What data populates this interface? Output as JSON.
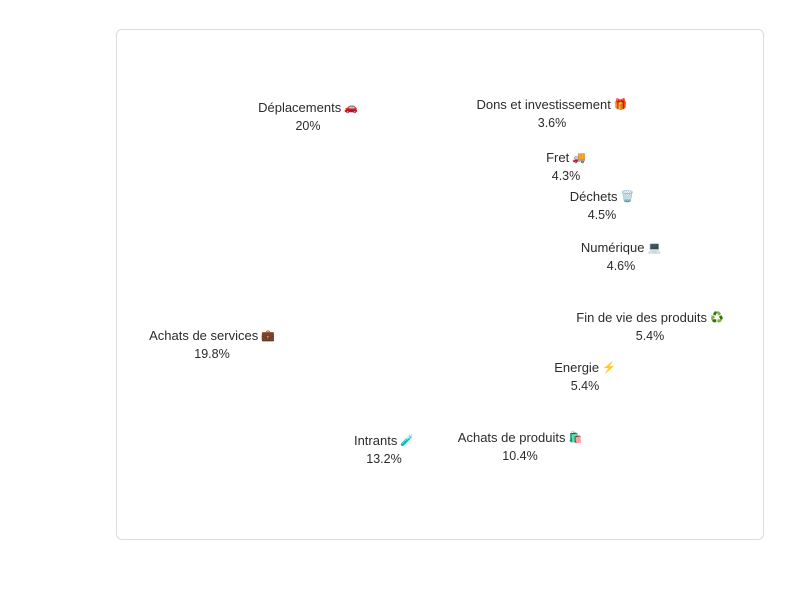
{
  "chart_data": {
    "type": "pie",
    "slices": [
      {
        "name": "Déplacements",
        "emoji": "🚗",
        "value": 20,
        "value_label": "20%"
      },
      {
        "name": "Dons et investissement",
        "emoji": "🎁",
        "value": 3.6,
        "value_label": "3.6%"
      },
      {
        "name": "Fret",
        "emoji": "🚚",
        "value": 4.3,
        "value_label": "4.3%"
      },
      {
        "name": "Déchets",
        "emoji": "🗑️",
        "value": 4.5,
        "value_label": "4.5%"
      },
      {
        "name": "Numérique",
        "emoji": "💻",
        "value": 4.6,
        "value_label": "4.6%"
      },
      {
        "name": "Fin de vie des produits",
        "emoji": "♻️",
        "value": 5.4,
        "value_label": "5.4%"
      },
      {
        "name": "Energie",
        "emoji": "⚡",
        "value": 5.4,
        "value_label": "5.4%"
      },
      {
        "name": "Achats de produits",
        "emoji": "🛍️",
        "value": 10.4,
        "value_label": "10.4%"
      },
      {
        "name": "Intrants",
        "emoji": "🧪",
        "value": 13.2,
        "value_label": "13.2%"
      },
      {
        "name": "Achats de services",
        "emoji": "💼",
        "value": 19.8,
        "value_label": "19.8%"
      }
    ],
    "colors": [
      "#f7f7f7",
      "#f4f4f4",
      "#f6f6f6",
      "#f3f3f3",
      "#f8f8f8",
      "#f5f5f5",
      "#f7f7f7",
      "#f2f2f2",
      "#f6f6f6",
      "#f4f4f4"
    ],
    "legend": "none"
  }
}
